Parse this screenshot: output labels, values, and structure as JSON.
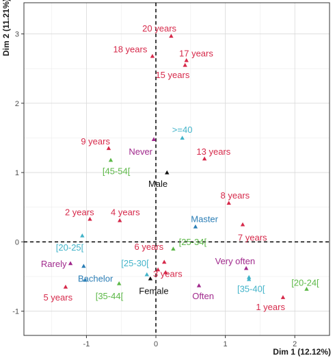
{
  "chart_data": {
    "type": "scatter",
    "xlabel": "Dim 1 (12.12%)",
    "ylabel": "Dim 2 (11.21%)",
    "xlim": [
      -1.9,
      2.5
    ],
    "ylim": [
      -1.35,
      3.45
    ],
    "x_ticks": [
      -1,
      0,
      1,
      2
    ],
    "y_ticks": [
      -1,
      0,
      1,
      2,
      3
    ],
    "grid": true,
    "reference_lines": {
      "x": 0,
      "y": 0,
      "style": "dashed"
    },
    "colors": {
      "years": "#d6294a",
      "age": "#41b3c9",
      "education": "#2a7db5",
      "frequency": "#a0298c",
      "group": "#5cb847",
      "sex": "#111111"
    },
    "points": [
      {
        "label": "20 years",
        "group": "years",
        "x": 0.22,
        "y": 2.97,
        "lx": 0.05,
        "ly": 3.08
      },
      {
        "label": "18 years",
        "group": "years",
        "x": -0.05,
        "y": 2.68,
        "lx": -0.37,
        "ly": 2.78
      },
      {
        "label": "17 years",
        "group": "years",
        "x": 0.44,
        "y": 2.62,
        "lx": 0.58,
        "ly": 2.72
      },
      {
        "label": "15 years",
        "group": "years",
        "x": 0.42,
        "y": 2.55,
        "lx": 0.24,
        "ly": 2.41
      },
      {
        "label": ">=40",
        "group": "age",
        "x": 0.38,
        "y": 1.5,
        "lx": 0.38,
        "ly": 1.62
      },
      {
        "label": "9 years",
        "group": "years",
        "x": -0.68,
        "y": 1.35,
        "lx": -0.87,
        "ly": 1.45
      },
      {
        "label": "Never",
        "group": "frequency",
        "x": -0.03,
        "y": 1.48,
        "lx": -0.22,
        "ly": 1.3
      },
      {
        "label": "13 years",
        "group": "years",
        "x": 0.7,
        "y": 1.2,
        "lx": 0.83,
        "ly": 1.3
      },
      {
        "label": "[45-54[",
        "group": "group",
        "x": -0.65,
        "y": 1.18,
        "lx": -0.57,
        "ly": 1.02
      },
      {
        "label": "Male",
        "group": "sex",
        "x": 0.16,
        "y": 1.0,
        "lx": 0.03,
        "ly": 0.84
      },
      {
        "label": "8 years",
        "group": "years",
        "x": 1.05,
        "y": 0.56,
        "lx": 1.14,
        "ly": 0.67
      },
      {
        "label": "2 years",
        "group": "years",
        "x": -0.95,
        "y": 0.33,
        "lx": -1.1,
        "ly": 0.43
      },
      {
        "label": "4 years",
        "group": "years",
        "x": -0.52,
        "y": 0.31,
        "lx": -0.44,
        "ly": 0.43
      },
      {
        "label": "Master",
        "group": "education",
        "x": 0.57,
        "y": 0.22,
        "lx": 0.7,
        "ly": 0.33
      },
      {
        "label": "7 years",
        "group": "years",
        "x": 1.25,
        "y": 0.25,
        "lx": 1.39,
        "ly": 0.06
      },
      {
        "label": "[25-34[",
        "group": "group",
        "x": 0.25,
        "y": -0.1,
        "lx": 0.53,
        "ly": 0.0
      },
      {
        "label": "[20-25[",
        "group": "age",
        "x": -1.06,
        "y": 0.09,
        "lx": -1.24,
        "ly": -0.08
      },
      {
        "label": "6 years",
        "group": "years",
        "x": 0.12,
        "y": -0.29,
        "lx": -0.1,
        "ly": -0.07
      },
      {
        "label": "Rarely",
        "group": "frequency",
        "x": -1.23,
        "y": -0.31,
        "lx": -1.47,
        "ly": -0.32
      },
      {
        "label": "[25-30[",
        "group": "age",
        "x": -0.13,
        "y": -0.47,
        "lx": -0.3,
        "ly": -0.31
      },
      {
        "label": "Very often",
        "group": "frequency",
        "x": 1.3,
        "y": -0.38,
        "lx": 1.14,
        "ly": -0.28
      },
      {
        "label": "",
        "group": "education",
        "x": -1.04,
        "y": -0.35
      },
      {
        "label": "",
        "group": "years",
        "x": 0.03,
        "y": -0.4
      },
      {
        "label": "3 years",
        "group": "years",
        "x": 0.14,
        "y": -0.44,
        "lx": 0.17,
        "ly": -0.46
      },
      {
        "label": "Bachelor",
        "group": "education",
        "x": -1.02,
        "y": -0.55,
        "lx": -0.87,
        "ly": -0.53
      },
      {
        "label": "Female",
        "group": "sex",
        "x": -0.08,
        "y": -0.53,
        "lx": -0.03,
        "ly": -0.71
      },
      {
        "label": "",
        "group": "age",
        "x": 1.34,
        "y": -0.51
      },
      {
        "label": "[20-24[",
        "group": "group",
        "x": 2.17,
        "y": -0.68,
        "lx": 2.15,
        "ly": -0.59
      },
      {
        "label": "5 years",
        "group": "years",
        "x": -1.3,
        "y": -0.65,
        "lx": -1.41,
        "ly": -0.8
      },
      {
        "label": "[35-44[",
        "group": "group",
        "x": -0.53,
        "y": -0.6,
        "lx": -0.67,
        "ly": -0.78
      },
      {
        "label": "Often",
        "group": "frequency",
        "x": 0.62,
        "y": -0.63,
        "lx": 0.68,
        "ly": -0.78
      },
      {
        "label": "[35-40[",
        "group": "age",
        "x": 1.34,
        "y": -0.54,
        "lx": 1.37,
        "ly": -0.68
      },
      {
        "label": "1 years",
        "group": "years",
        "x": 1.83,
        "y": -0.8,
        "lx": 1.65,
        "ly": -0.94
      }
    ]
  }
}
